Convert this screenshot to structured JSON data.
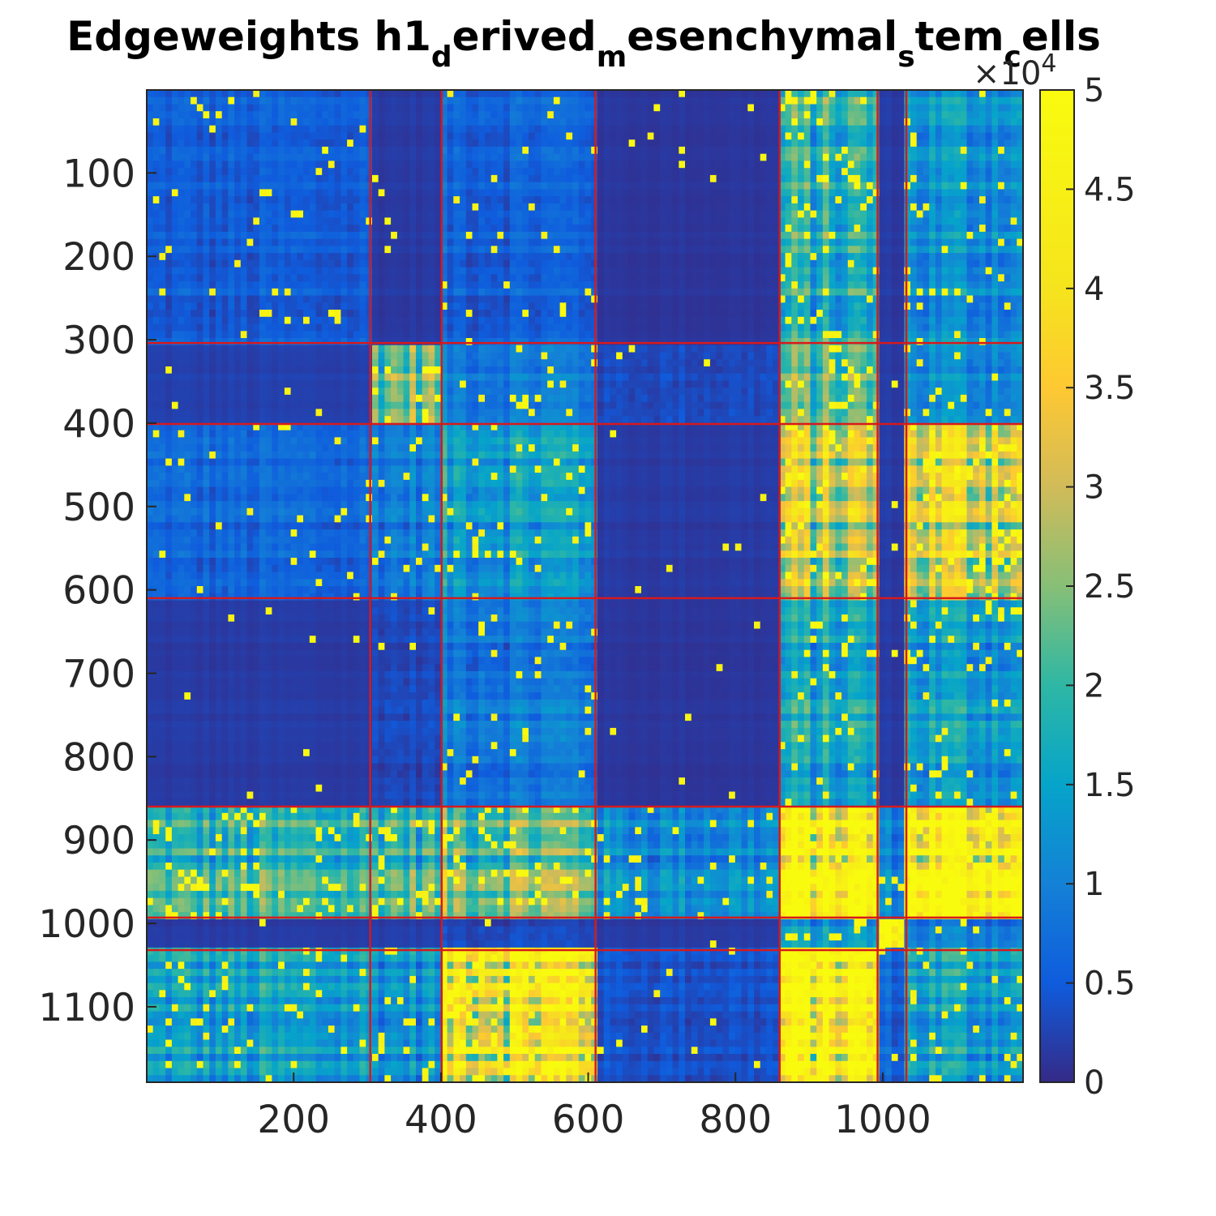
{
  "chart_data": {
    "type": "heatmap",
    "title": "Edgeweights h1_derived_mesenchymal_stem_cells",
    "title_parts": [
      {
        "text": "Edgeweights h1",
        "sub": false
      },
      {
        "text": "d",
        "sub": true
      },
      {
        "text": "erived",
        "sub": false
      },
      {
        "text": "m",
        "sub": true
      },
      {
        "text": "esenchymal",
        "sub": false
      },
      {
        "text": "s",
        "sub": true
      },
      {
        "text": "tem",
        "sub": false
      },
      {
        "text": "c",
        "sub": true
      },
      {
        "text": "ells",
        "sub": false
      }
    ],
    "xlabel": "",
    "ylabel": "",
    "xlim": [
      0.5,
      1190.5
    ],
    "ylim": [
      0.5,
      1190.5
    ],
    "x_ticks": [
      200,
      400,
      600,
      800,
      1000
    ],
    "y_ticks": [
      100,
      200,
      300,
      400,
      500,
      600,
      700,
      800,
      900,
      1000,
      1100
    ],
    "colorbar": {
      "min": 0,
      "max": 5,
      "ticks": [
        "0",
        "0.5",
        "1",
        "1.5",
        "2",
        "2.5",
        "3",
        "3.5",
        "4",
        "4.5",
        "5"
      ],
      "multiplier": "×10",
      "exponent": "4",
      "colormap": "parula"
    },
    "block_boundaries": [
      304,
      401,
      610,
      860,
      993,
      1032
    ],
    "boundary_color": "#d7191c",
    "block_intensity": [
      [
        0.1,
        0.04,
        0.12,
        0.03,
        0.35,
        0.04,
        0.25
      ],
      [
        0.05,
        0.45,
        0.18,
        0.06,
        0.4,
        0.04,
        0.22
      ],
      [
        0.12,
        0.18,
        0.28,
        0.04,
        0.55,
        0.04,
        0.62
      ],
      [
        0.04,
        0.06,
        0.18,
        0.03,
        0.3,
        0.04,
        0.28
      ],
      [
        0.35,
        0.38,
        0.45,
        0.22,
        0.85,
        0.2,
        0.9
      ],
      [
        0.04,
        0.05,
        0.06,
        0.04,
        0.25,
        1.0,
        0.18
      ],
      [
        0.28,
        0.25,
        0.78,
        0.08,
        0.92,
        0.12,
        0.3
      ]
    ]
  }
}
